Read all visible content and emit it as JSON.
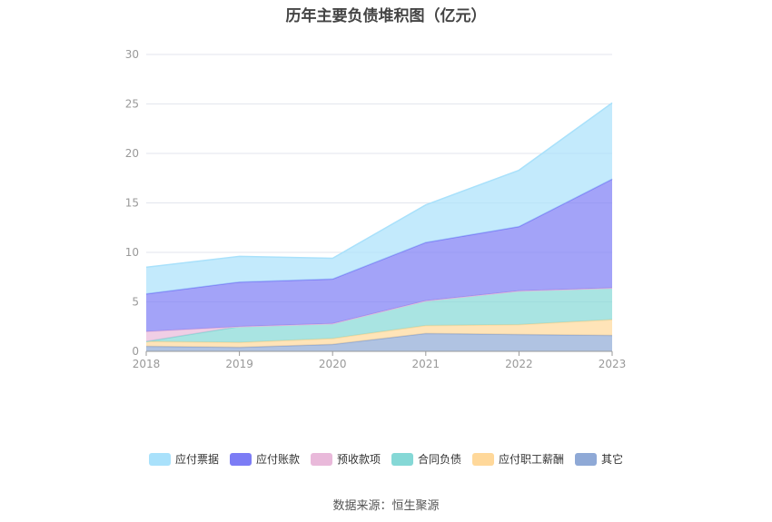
{
  "chart_data": {
    "type": "area",
    "stacked": true,
    "title": "历年主要负债堆积图（亿元）",
    "x": [
      "2018",
      "2019",
      "2020",
      "2021",
      "2022",
      "2023"
    ],
    "ylim": [
      0,
      30
    ],
    "yticks": [
      "0",
      "5",
      "10",
      "15",
      "20",
      "25",
      "30"
    ],
    "grid": true,
    "legend_position": "bottom",
    "series": [
      {
        "name": "其它",
        "color": "#8fa9d6",
        "values": [
          0.5,
          0.4,
          0.7,
          1.8,
          1.7,
          1.6
        ]
      },
      {
        "name": "应付职工薪酬",
        "color": "#ffd89a",
        "values": [
          0.5,
          0.5,
          0.6,
          0.8,
          1.0,
          1.6
        ]
      },
      {
        "name": "合同负债",
        "color": "#85d8d6",
        "values": [
          0.0,
          1.6,
          1.5,
          2.5,
          3.4,
          3.2
        ]
      },
      {
        "name": "预收款项",
        "color": "#e9b9da",
        "values": [
          1.0,
          0.0,
          0.0,
          0.0,
          0.0,
          0.0
        ]
      },
      {
        "name": "应付账款",
        "color": "#7c7cf5",
        "values": [
          3.8,
          4.5,
          4.5,
          5.9,
          6.5,
          11.0
        ]
      },
      {
        "name": "应付票据",
        "color": "#a9e1fb",
        "values": [
          2.7,
          2.6,
          2.1,
          3.8,
          5.7,
          7.7
        ]
      }
    ],
    "legend_order": [
      "应付票据",
      "应付账款",
      "预收款项",
      "合同负债",
      "应付职工薪酬",
      "其它"
    ]
  },
  "footer": {
    "source": "数据来源：恒生聚源"
  }
}
